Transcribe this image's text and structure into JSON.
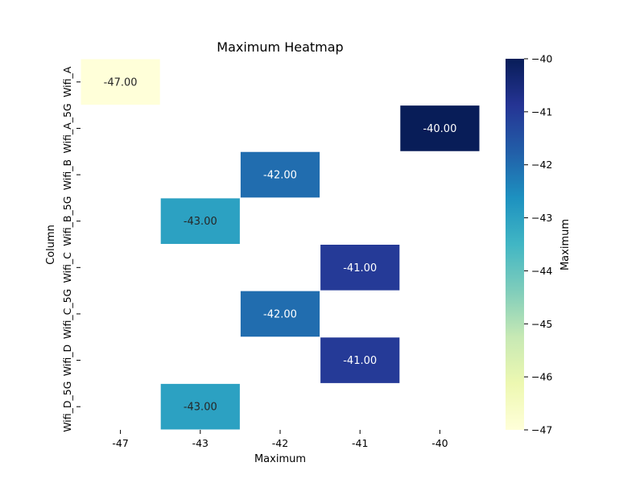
{
  "chart_data": {
    "type": "heatmap",
    "title": "Maximum Heatmap",
    "xlabel": "Maximum",
    "ylabel": "Column",
    "x_categories": [
      "-47",
      "-43",
      "-42",
      "-41",
      "-40"
    ],
    "y_categories": [
      "Wifi_A",
      "Wifi_A_5G",
      "Wifi_B",
      "Wifi_B_5G",
      "Wifi_C",
      "Wifi_C_5G",
      "Wifi_D",
      "Wifi_D_5G"
    ],
    "cells": [
      {
        "row": "Wifi_A",
        "col": "-47",
        "value": -47.0,
        "label": "-47.00"
      },
      {
        "row": "Wifi_A_5G",
        "col": "-40",
        "value": -40.0,
        "label": "-40.00"
      },
      {
        "row": "Wifi_B",
        "col": "-42",
        "value": -42.0,
        "label": "-42.00"
      },
      {
        "row": "Wifi_B_5G",
        "col": "-43",
        "value": -43.0,
        "label": "-43.00"
      },
      {
        "row": "Wifi_C",
        "col": "-41",
        "value": -41.0,
        "label": "-41.00"
      },
      {
        "row": "Wifi_C_5G",
        "col": "-42",
        "value": -42.0,
        "label": "-42.00"
      },
      {
        "row": "Wifi_D",
        "col": "-41",
        "value": -41.0,
        "label": "-41.00"
      },
      {
        "row": "Wifi_D_5G",
        "col": "-43",
        "value": -43.0,
        "label": "-43.00"
      }
    ],
    "colorbar": {
      "label": "Maximum",
      "range": [
        -47,
        -40
      ],
      "ticks": [
        "-40",
        "-41",
        "-42",
        "-43",
        "-44",
        "-45",
        "-46",
        "-47"
      ],
      "colormap": "YlGnBu",
      "colors": [
        "#ffffd9",
        "#edf8b1",
        "#c7e9b4",
        "#7fcdbb",
        "#41b6c4",
        "#1d91c0",
        "#225ea8",
        "#253494",
        "#081d58"
      ]
    },
    "grid": false
  }
}
